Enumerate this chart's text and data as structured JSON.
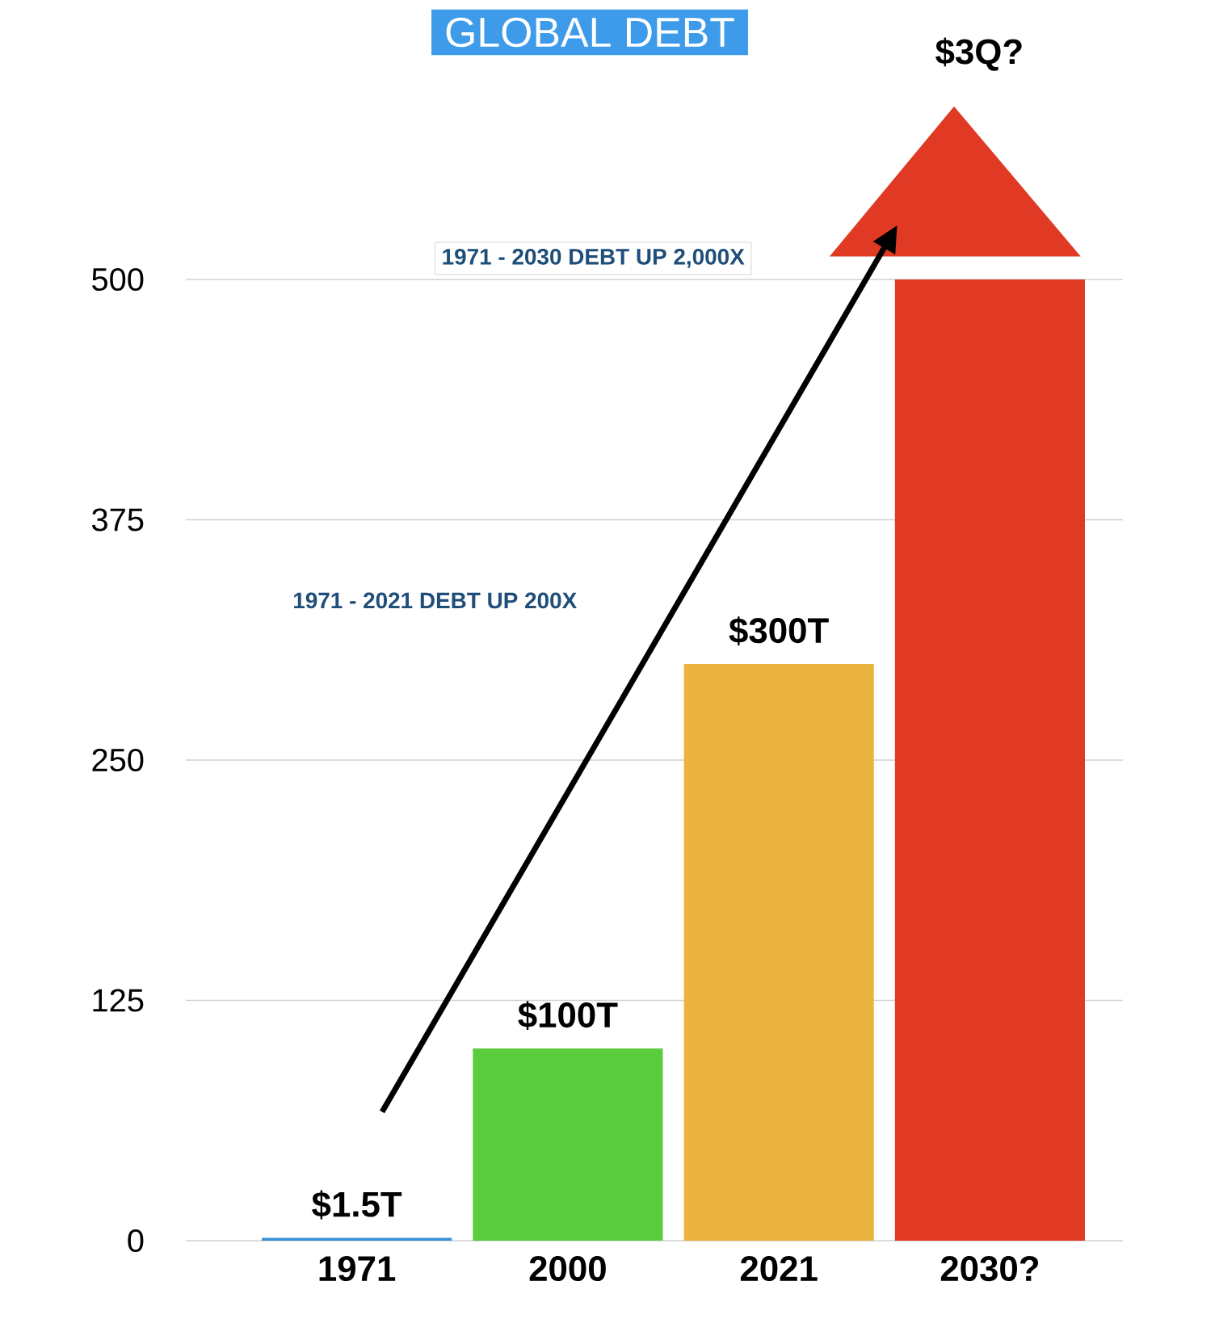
{
  "chart_data": {
    "type": "bar",
    "title": "GLOBAL DEBT",
    "categories": [
      "1971",
      "2000",
      "2021",
      "2030?"
    ],
    "values": [
      1.5,
      100,
      300,
      500
    ],
    "colors": [
      "#3b8fd6",
      "#5ccc3f",
      "#ebb33f",
      "#e03a24"
    ],
    "value_labels": [
      "$1.5T",
      "$100T",
      "$300T",
      null
    ],
    "annotations": [
      "1971 - 2030 DEBT UP 2,000X",
      "1971 - 2021 DEBT UP 200X",
      "$3Q?"
    ],
    "ylim": [
      0,
      500
    ],
    "yticks": [
      0,
      125,
      250,
      375,
      500
    ],
    "grid": "y"
  }
}
